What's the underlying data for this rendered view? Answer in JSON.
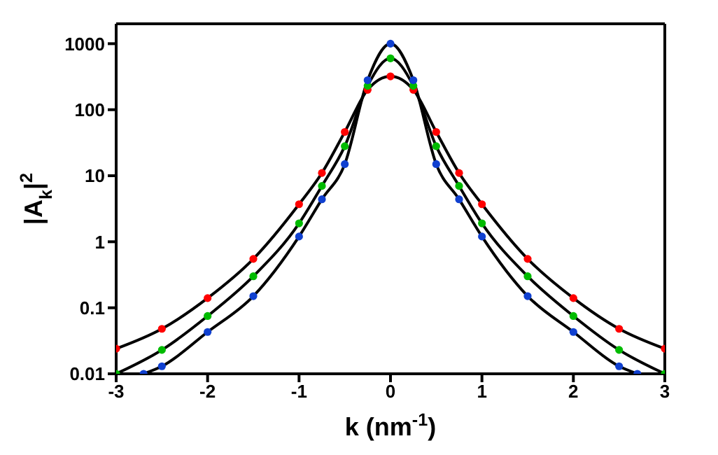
{
  "chart_data": {
    "type": "scatter",
    "xlabel": "k  (nm$^{-1}$)",
    "ylabel": "|A$_{k}$|$^{2}$",
    "log": "y",
    "xlim": [
      -3,
      3
    ],
    "xticks": [
      -3,
      -2,
      -1,
      0,
      1,
      2,
      3
    ],
    "ylim": [
      0.01,
      2000
    ],
    "yticks": [
      0.01,
      0.1,
      1,
      10,
      100,
      1000
    ],
    "grid": false,
    "marker": "circle",
    "series": [
      {
        "type": "line",
        "color": "#000000",
        "line_style": "solid",
        "marker": "none",
        "x": [
          -3,
          -2.5,
          -2,
          -1.5,
          -1,
          -0.75,
          -0.5,
          -0.25,
          0,
          0.25,
          0.5,
          0.75,
          1,
          1.5,
          2,
          2.5,
          3
        ],
        "values": [
          0.024,
          0.048,
          0.14,
          0.55,
          3.7,
          11,
          46,
          200,
          320,
          200,
          46,
          11,
          3.7,
          0.55,
          0.14,
          0.048,
          0.024
        ]
      },
      {
        "type": "line",
        "color": "#000000",
        "line_style": "solid",
        "marker": "none",
        "x": [
          -3,
          -2.5,
          -2,
          -1.5,
          -1,
          -0.75,
          -0.5,
          -0.25,
          0,
          0.25,
          0.5,
          0.75,
          1,
          1.5,
          2,
          2.5,
          3
        ],
        "values": [
          0.01,
          0.023,
          0.075,
          0.3,
          1.9,
          7,
          28,
          230,
          600,
          230,
          28,
          7,
          1.9,
          0.3,
          0.075,
          0.023,
          0.01
        ]
      },
      {
        "type": "line",
        "color": "#000000",
        "line_style": "solid",
        "marker": "none",
        "x": [
          -2.7,
          -2.5,
          -2,
          -1.5,
          -1,
          -0.75,
          -0.5,
          -0.25,
          0,
          0.25,
          0.5,
          0.75,
          1,
          1.5,
          2,
          2.5,
          2.7
        ],
        "values": [
          0.01,
          0.013,
          0.043,
          0.15,
          1.2,
          4.4,
          15,
          280,
          1000,
          280,
          15,
          4.4,
          1.2,
          0.15,
          0.043,
          0.013,
          0.01
        ]
      },
      {
        "color": "#ff0000",
        "x": [
          -3,
          -2.5,
          -2,
          -1.5,
          -1,
          -0.75,
          -0.5,
          -0.25,
          0,
          0.25,
          0.5,
          0.75,
          1,
          1.5,
          2,
          2.5,
          3
        ],
        "values": [
          0.024,
          0.048,
          0.14,
          0.55,
          3.7,
          11,
          46,
          200,
          320,
          200,
          46,
          11,
          3.7,
          0.55,
          0.14,
          0.048,
          0.024
        ]
      },
      {
        "color": "#00bb00",
        "x": [
          -3,
          -2.5,
          -2,
          -1.5,
          -1,
          -0.75,
          -0.5,
          -0.25,
          0,
          0.25,
          0.5,
          0.75,
          1,
          1.5,
          2,
          2.5,
          3
        ],
        "values": [
          0.01,
          0.023,
          0.075,
          0.3,
          1.9,
          7,
          28,
          230,
          600,
          230,
          28,
          7,
          1.9,
          0.3,
          0.075,
          0.023,
          0.01
        ]
      },
      {
        "color": "#1040d0",
        "x": [
          -2.7,
          -2.5,
          -2,
          -1.5,
          -1,
          -0.75,
          -0.5,
          -0.25,
          0,
          0.25,
          0.5,
          0.75,
          1,
          1.5,
          2,
          2.5,
          2.7
        ],
        "values": [
          0.01,
          0.013,
          0.043,
          0.15,
          1.2,
          4.4,
          15,
          280,
          1000,
          280,
          15,
          4.4,
          1.2,
          0.15,
          0.043,
          0.013,
          0.01
        ]
      }
    ]
  }
}
